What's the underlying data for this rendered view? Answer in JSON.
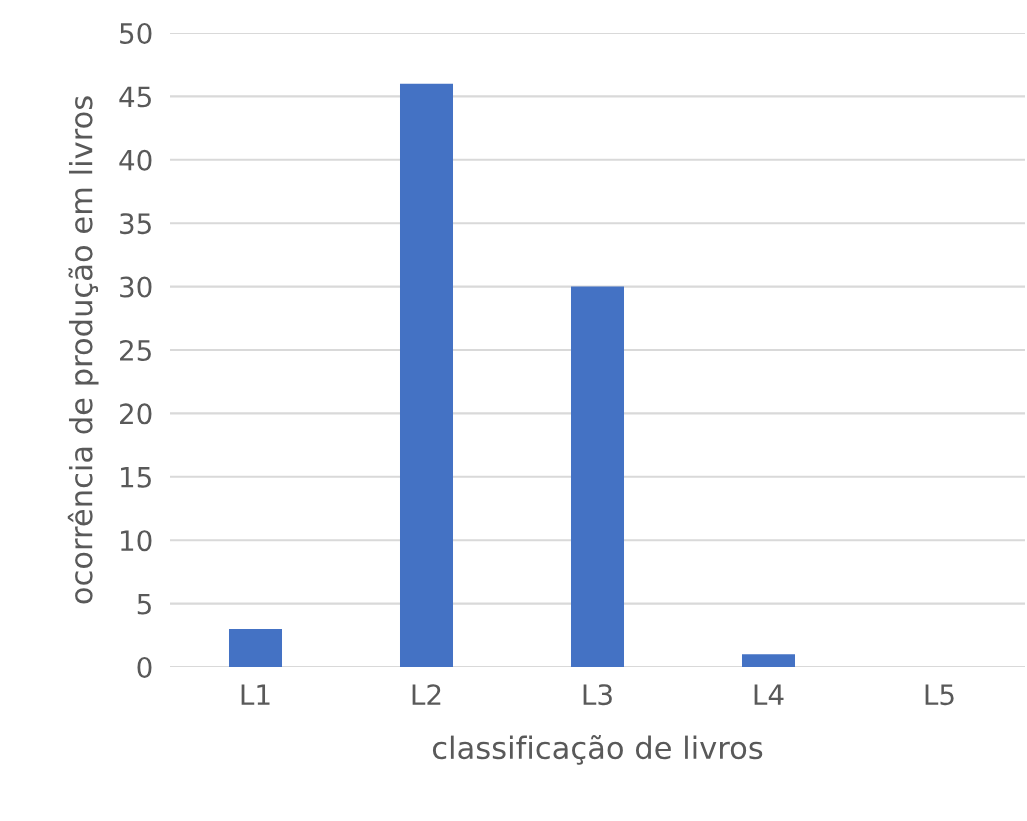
{
  "chart_data": {
    "type": "bar",
    "xlabel": "classificação de livros",
    "ylabel": "ocorrência de produção em livros",
    "categories": [
      "L1",
      "L2",
      "L3",
      "L4",
      "L5"
    ],
    "values": [
      3,
      46,
      30,
      1,
      0
    ],
    "color": "#4472c4",
    "ylim": [
      0,
      50
    ],
    "yticks": [
      0,
      5,
      10,
      15,
      20,
      25,
      30,
      35,
      40,
      45,
      50
    ],
    "grid": "y",
    "legend": false
  }
}
